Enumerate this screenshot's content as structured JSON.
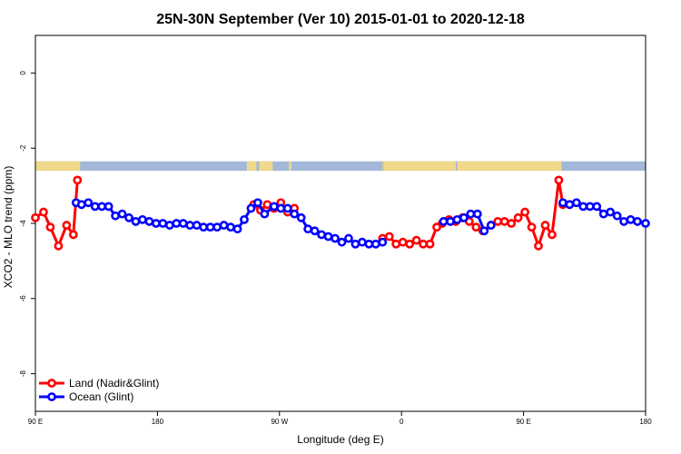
{
  "chart_data": {
    "type": "line",
    "title": "25N-30N September (Ver 10)   2015-01-01 to 2020-12-18",
    "xlabel": "Longitude (deg E)",
    "ylabel": "XCO2 - MLO trend (ppm)",
    "xlim": [
      90,
      540
    ],
    "ylim": [
      -9,
      1
    ],
    "x_ticks": [
      {
        "value": 90,
        "label": "90 E"
      },
      {
        "value": 180,
        "label": "180"
      },
      {
        "value": 270,
        "label": "90 W"
      },
      {
        "value": 360,
        "label": "0"
      },
      {
        "value": 450,
        "label": "90 E"
      },
      {
        "value": 540,
        "label": "180"
      }
    ],
    "y_ticks": [
      {
        "value": 0,
        "label": "0"
      },
      {
        "value": -2,
        "label": "-2"
      },
      {
        "value": -4,
        "label": "-4"
      },
      {
        "value": -6,
        "label": "-6"
      },
      {
        "value": -8,
        "label": "-8"
      }
    ],
    "map_strip": {
      "y_range": [
        -2.6,
        -2.35
      ],
      "ocean_color": "#a3b8d8",
      "land_color": "#f2d88a",
      "land_segments": [
        [
          90,
          123
        ],
        [
          246,
          253
        ],
        [
          255,
          265
        ],
        [
          277,
          278
        ],
        [
          278,
          278.5
        ],
        [
          346,
          346.5
        ],
        [
          347,
          360
        ],
        [
          360,
          400
        ],
        [
          401,
          478
        ]
      ]
    },
    "legend": {
      "position": "bottom-left",
      "items": [
        {
          "label": "Land (Nadir&Glint)",
          "color": "#ff0000"
        },
        {
          "label": "Ocean (Glint)",
          "color": "#0000ff"
        }
      ]
    },
    "series": [
      {
        "name": "Land (Nadir&Glint)",
        "color": "#ff0000",
        "x": [
          90,
          96,
          101,
          107,
          113,
          118,
          121,
          251,
          256,
          261,
          266,
          271,
          276,
          281,
          346,
          351,
          356,
          361,
          366,
          371,
          376,
          381,
          386,
          390,
          395,
          400,
          405,
          410,
          415,
          420,
          426,
          431,
          436,
          441,
          446,
          451,
          456,
          461,
          466,
          471,
          476,
          479,
          484
        ],
        "y": [
          -3.85,
          -3.7,
          -4.1,
          -4.6,
          -4.05,
          -4.3,
          -2.85,
          -3.5,
          -3.65,
          -3.5,
          -3.6,
          -3.45,
          -3.7,
          -3.6,
          -4.4,
          -4.35,
          -4.55,
          -4.5,
          -4.55,
          -4.45,
          -4.55,
          -4.55,
          -4.1,
          -4.0,
          -3.9,
          -3.95,
          -3.85,
          -3.95,
          -4.1,
          -4.2,
          -4.05,
          -3.95,
          -3.95,
          -4.0,
          -3.85,
          -3.7,
          -4.1,
          -4.6,
          -4.05,
          -4.3,
          -2.85,
          -3.5,
          -3.5
        ]
      },
      {
        "name": "Ocean (Glint)",
        "color": "#0000ff",
        "x": [
          120,
          124,
          129,
          134,
          139,
          144,
          149,
          154,
          159,
          164,
          169,
          174,
          179,
          184,
          189,
          194,
          199,
          204,
          209,
          214,
          219,
          224,
          229,
          234,
          239,
          244,
          249,
          254,
          259,
          266,
          271,
          276,
          281,
          286,
          291,
          296,
          301,
          306,
          311,
          316,
          321,
          326,
          331,
          336,
          341,
          346,
          391,
          396,
          401,
          406,
          411,
          416,
          421,
          426,
          479,
          484,
          489,
          494,
          499,
          504,
          509,
          514,
          519,
          524,
          529,
          534,
          540
        ],
        "y": [
          -3.45,
          -3.5,
          -3.45,
          -3.55,
          -3.55,
          -3.55,
          -3.8,
          -3.75,
          -3.85,
          -3.95,
          -3.9,
          -3.95,
          -4.0,
          -4.0,
          -4.05,
          -4.0,
          -4.0,
          -4.05,
          -4.05,
          -4.1,
          -4.1,
          -4.1,
          -4.05,
          -4.1,
          -4.15,
          -3.9,
          -3.6,
          -3.45,
          -3.75,
          -3.55,
          -3.6,
          -3.6,
          -3.75,
          -3.85,
          -4.15,
          -4.2,
          -4.3,
          -4.35,
          -4.4,
          -4.5,
          -4.4,
          -4.55,
          -4.5,
          -4.55,
          -4.55,
          -4.5,
          -3.95,
          -3.95,
          -3.9,
          -3.85,
          -3.75,
          -3.75,
          -4.2,
          -4.05,
          -3.45,
          -3.5,
          -3.45,
          -3.55,
          -3.55,
          -3.55,
          -3.75,
          -3.7,
          -3.8,
          -3.95,
          -3.9,
          -3.95,
          -4.0
        ]
      }
    ]
  }
}
